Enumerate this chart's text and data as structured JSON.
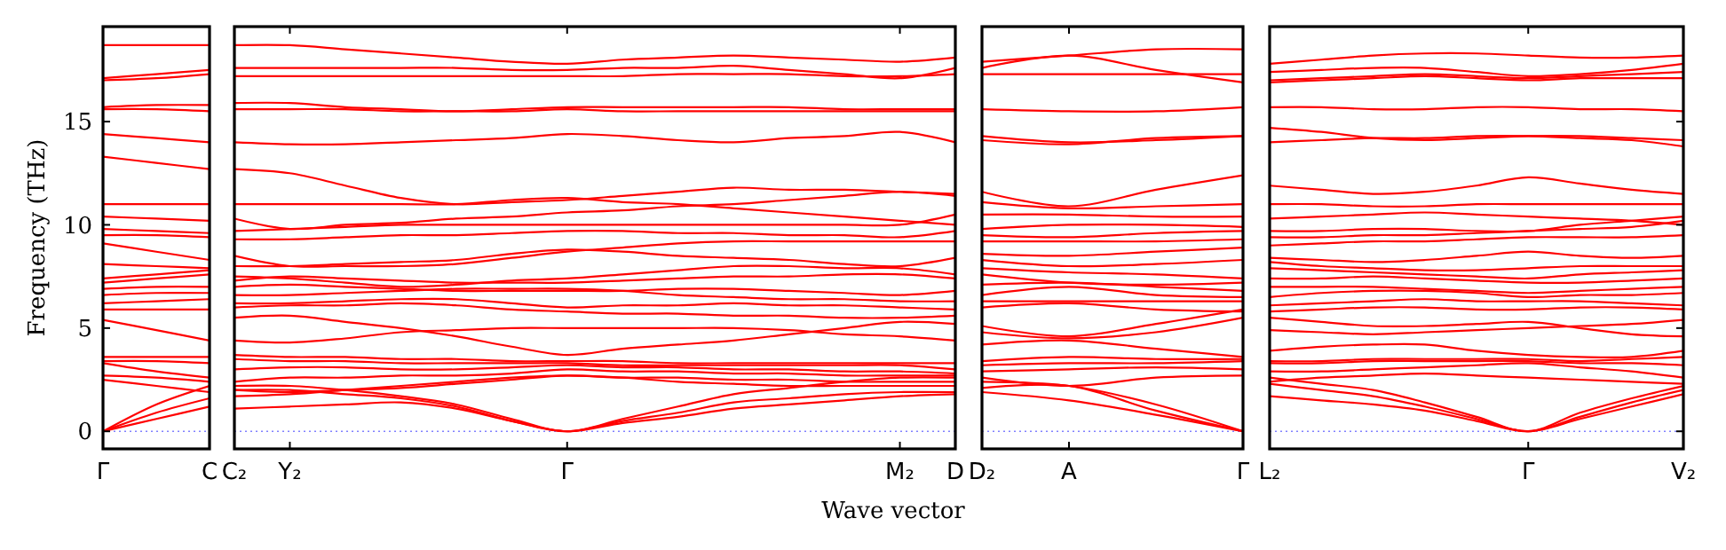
{
  "chart_data": [
    {
      "type": "line",
      "ylabel": "Frequency (THz)",
      "categories": [
        "Γ",
        null,
        "C"
      ],
      "ylim": [
        -0.85,
        19.6
      ],
      "yticks": [
        0,
        5,
        10,
        15
      ],
      "grid": false,
      "ref_lines": [
        {
          "axis": "y",
          "value": 0,
          "color": "#8080ff",
          "line_style": "dotted"
        }
      ],
      "series": [
        {
          "color": "#ff0000",
          "values": [
            18.7,
            18.7,
            18.7
          ]
        },
        {
          "color": "#ff0000",
          "values": [
            17.1,
            17.3,
            17.5
          ]
        },
        {
          "color": "#ff0000",
          "values": [
            17.0,
            17.1,
            17.3
          ]
        },
        {
          "color": "#ff0000",
          "values": [
            15.7,
            15.8,
            15.8
          ]
        },
        {
          "color": "#ff0000",
          "values": [
            15.6,
            15.6,
            15.5
          ]
        },
        {
          "color": "#ff0000",
          "values": [
            14.4,
            14.2,
            14.0
          ]
        },
        {
          "color": "#ff0000",
          "values": [
            13.3,
            13.0,
            12.7
          ]
        },
        {
          "color": "#ff0000",
          "values": [
            11.0,
            11.0,
            11.0
          ]
        },
        {
          "color": "#ff0000",
          "values": [
            10.4,
            10.3,
            10.2
          ]
        },
        {
          "color": "#ff0000",
          "values": [
            9.8,
            9.7,
            9.6
          ]
        },
        {
          "color": "#ff0000",
          "values": [
            9.5,
            9.5,
            9.4
          ]
        },
        {
          "color": "#ff0000",
          "values": [
            9.1,
            8.7,
            8.3
          ]
        },
        {
          "color": "#ff0000",
          "values": [
            8.1,
            8.0,
            7.9
          ]
        },
        {
          "color": "#ff0000",
          "values": [
            7.4,
            7.6,
            7.8
          ]
        },
        {
          "color": "#ff0000",
          "values": [
            7.2,
            7.4,
            7.6
          ]
        },
        {
          "color": "#ff0000",
          "values": [
            6.9,
            7.0,
            7.0
          ]
        },
        {
          "color": "#ff0000",
          "values": [
            6.6,
            6.7,
            6.7
          ]
        },
        {
          "color": "#ff0000",
          "values": [
            6.2,
            6.3,
            6.4
          ]
        },
        {
          "color": "#ff0000",
          "values": [
            5.9,
            5.9,
            5.9
          ]
        },
        {
          "color": "#ff0000",
          "values": [
            5.4,
            4.9,
            4.4
          ]
        },
        {
          "color": "#ff0000",
          "values": [
            3.6,
            3.6,
            3.6
          ]
        },
        {
          "color": "#ff0000",
          "values": [
            3.4,
            3.4,
            3.3
          ]
        },
        {
          "color": "#ff0000",
          "values": [
            3.3,
            2.9,
            2.6
          ]
        },
        {
          "color": "#ff0000",
          "values": [
            2.7,
            2.6,
            2.4
          ]
        },
        {
          "color": "#ff0000",
          "values": [
            2.5,
            2.2,
            1.9
          ]
        },
        {
          "color": "#ff0000",
          "values": [
            0,
            1.3,
            2.2
          ]
        },
        {
          "color": "#ff0000",
          "values": [
            0,
            0.9,
            1.6
          ]
        },
        {
          "color": "#ff0000",
          "values": [
            0,
            0.6,
            1.2
          ]
        }
      ]
    },
    {
      "type": "line",
      "xlabel": "Wave vector",
      "categories": [
        "C₂",
        "Y₂",
        null,
        null,
        null,
        null,
        "Γ",
        null,
        null,
        null,
        null,
        null,
        "M₂",
        "D"
      ],
      "ylim": [
        -0.85,
        19.6
      ],
      "yticks": [
        0,
        5,
        10,
        15
      ],
      "tick_labels": "x",
      "grid": false,
      "ref_lines": [
        {
          "axis": "y",
          "value": 0,
          "color": "#8080ff",
          "line_style": "dotted"
        }
      ],
      "series": [
        {
          "color": "#ff0000",
          "values": [
            18.7,
            18.7,
            18.5,
            18.3,
            18.1,
            17.9,
            17.8,
            18.0,
            18.1,
            18.2,
            18.1,
            18.0,
            17.9,
            18.1
          ]
        },
        {
          "color": "#ff0000",
          "values": [
            17.6,
            17.6,
            17.6,
            17.6,
            17.6,
            17.5,
            17.5,
            17.6,
            17.6,
            17.7,
            17.5,
            17.3,
            17.1,
            17.6
          ]
        },
        {
          "color": "#ff0000",
          "values": [
            17.2,
            17.2,
            17.2,
            17.2,
            17.2,
            17.2,
            17.2,
            17.2,
            17.3,
            17.3,
            17.3,
            17.2,
            17.2,
            17.3
          ]
        },
        {
          "color": "#ff0000",
          "values": [
            15.9,
            15.9,
            15.7,
            15.6,
            15.5,
            15.6,
            15.7,
            15.7,
            15.7,
            15.7,
            15.7,
            15.6,
            15.6,
            15.6
          ]
        },
        {
          "color": "#ff0000",
          "values": [
            15.6,
            15.6,
            15.6,
            15.5,
            15.5,
            15.5,
            15.6,
            15.5,
            15.5,
            15.5,
            15.5,
            15.5,
            15.5,
            15.5
          ]
        },
        {
          "color": "#ff0000",
          "values": [
            14.0,
            13.9,
            13.9,
            14.0,
            14.1,
            14.2,
            14.4,
            14.3,
            14.1,
            14.0,
            14.2,
            14.3,
            14.5,
            14.0
          ]
        },
        {
          "color": "#ff0000",
          "values": [
            12.7,
            12.5,
            11.9,
            11.3,
            11.0,
            11.1,
            11.2,
            11.4,
            11.6,
            11.8,
            11.7,
            11.7,
            11.6,
            11.5
          ]
        },
        {
          "color": "#ff0000",
          "values": [
            11.0,
            11.0,
            11.0,
            11.0,
            11.0,
            11.2,
            11.3,
            11.1,
            11.0,
            10.8,
            10.6,
            10.4,
            10.2,
            10.0
          ]
        },
        {
          "color": "#ff0000",
          "values": [
            10.3,
            9.8,
            10.0,
            10.1,
            10.3,
            10.4,
            10.6,
            10.7,
            10.9,
            11.0,
            11.2,
            11.4,
            11.6,
            11.4
          ]
        },
        {
          "color": "#ff0000",
          "values": [
            9.7,
            9.8,
            9.9,
            10.0,
            10.0,
            10.0,
            10.0,
            10.0,
            10.0,
            10.0,
            10.0,
            10.0,
            10.0,
            10.5
          ]
        },
        {
          "color": "#ff0000",
          "values": [
            9.3,
            9.3,
            9.4,
            9.5,
            9.5,
            9.6,
            9.7,
            9.7,
            9.6,
            9.6,
            9.5,
            9.5,
            9.4,
            9.7
          ]
        },
        {
          "color": "#ff0000",
          "values": [
            8.5,
            8.0,
            8.0,
            8.0,
            8.1,
            8.4,
            8.7,
            8.9,
            9.1,
            9.2,
            9.2,
            9.2,
            9.2,
            9.2
          ]
        },
        {
          "color": "#ff0000",
          "values": [
            8.0,
            8.0,
            8.1,
            8.2,
            8.3,
            8.6,
            8.8,
            8.7,
            8.5,
            8.4,
            8.3,
            8.1,
            8.0,
            8.4
          ]
        },
        {
          "color": "#ff0000",
          "values": [
            7.5,
            7.4,
            7.2,
            7.0,
            7.1,
            7.3,
            7.4,
            7.6,
            7.8,
            8.0,
            8.0,
            7.9,
            7.9,
            7.6
          ]
        },
        {
          "color": "#ff0000",
          "values": [
            7.3,
            7.5,
            7.4,
            7.3,
            7.2,
            7.2,
            7.2,
            7.3,
            7.4,
            7.5,
            7.5,
            7.6,
            7.6,
            7.4
          ]
        },
        {
          "color": "#ff0000",
          "values": [
            7.0,
            7.1,
            7.0,
            6.9,
            6.8,
            6.8,
            6.8,
            6.8,
            6.9,
            6.9,
            6.8,
            6.7,
            6.6,
            6.8
          ]
        },
        {
          "color": "#ff0000",
          "values": [
            6.6,
            6.6,
            6.7,
            6.8,
            6.9,
            6.9,
            6.9,
            6.8,
            6.6,
            6.5,
            6.4,
            6.4,
            6.3,
            6.3
          ]
        },
        {
          "color": "#ff0000",
          "values": [
            6.2,
            6.2,
            6.3,
            6.4,
            6.4,
            6.2,
            6.0,
            6.1,
            6.1,
            6.2,
            6.1,
            6.1,
            6.0,
            5.9
          ]
        },
        {
          "color": "#ff0000",
          "values": [
            6.0,
            6.1,
            6.1,
            6.2,
            6.1,
            5.9,
            5.8,
            5.7,
            5.7,
            5.6,
            5.6,
            5.5,
            5.5,
            5.6
          ]
        },
        {
          "color": "#ff0000",
          "values": [
            5.5,
            5.6,
            5.3,
            5.0,
            4.6,
            4.1,
            3.7,
            4.0,
            4.2,
            4.4,
            4.7,
            5.0,
            5.3,
            5.2
          ]
        },
        {
          "color": "#ff0000",
          "values": [
            4.4,
            4.3,
            4.5,
            4.8,
            4.9,
            5.0,
            5.0,
            5.0,
            5.0,
            5.0,
            4.9,
            4.7,
            4.6,
            4.4
          ]
        },
        {
          "color": "#ff0000",
          "values": [
            3.7,
            3.6,
            3.6,
            3.5,
            3.5,
            3.4,
            3.4,
            3.4,
            3.3,
            3.3,
            3.3,
            3.3,
            3.3,
            3.3
          ]
        },
        {
          "color": "#ff0000",
          "values": [
            3.5,
            3.4,
            3.4,
            3.3,
            3.3,
            3.3,
            3.3,
            3.2,
            3.2,
            3.2,
            3.2,
            3.2,
            3.2,
            3.0
          ]
        },
        {
          "color": "#ff0000",
          "values": [
            3.0,
            3.1,
            3.1,
            3.0,
            3.0,
            3.1,
            3.2,
            3.1,
            3.1,
            3.0,
            3.0,
            2.9,
            2.9,
            2.8
          ]
        },
        {
          "color": "#ff0000",
          "values": [
            2.4,
            2.6,
            2.6,
            2.7,
            2.7,
            2.8,
            3.0,
            2.9,
            2.9,
            2.8,
            2.8,
            2.7,
            2.7,
            2.7
          ]
        },
        {
          "color": "#ff0000",
          "values": [
            2.0,
            1.9,
            2.0,
            2.1,
            2.3,
            2.5,
            2.7,
            2.6,
            2.6,
            2.5,
            2.5,
            2.4,
            2.4,
            2.4
          ]
        },
        {
          "color": "#ff0000",
          "values": [
            1.7,
            1.8,
            2.0,
            2.2,
            2.4,
            2.6,
            2.7,
            2.6,
            2.4,
            2.3,
            2.2,
            2.2,
            2.2,
            2.2
          ]
        },
        {
          "color": "#ff0000",
          "values": [
            2.2,
            2.2,
            2.0,
            1.7,
            1.3,
            0.6,
            0,
            0.6,
            1.2,
            1.8,
            2.1,
            2.4,
            2.6,
            2.6
          ]
        },
        {
          "color": "#ff0000",
          "values": [
            2.0,
            2.0,
            1.8,
            1.6,
            1.2,
            0.5,
            0,
            0.5,
            0.9,
            1.4,
            1.6,
            1.8,
            1.9,
            1.9
          ]
        },
        {
          "color": "#ff0000",
          "values": [
            1.1,
            1.2,
            1.3,
            1.4,
            1.1,
            0.5,
            0,
            0.4,
            0.7,
            1.1,
            1.3,
            1.5,
            1.7,
            1.8
          ]
        }
      ]
    },
    {
      "type": "line",
      "categories": [
        "D₂",
        "A",
        null,
        "Γ"
      ],
      "ylim": [
        -0.85,
        19.6
      ],
      "yticks": [
        0,
        5,
        10,
        15
      ],
      "tick_labels": "x",
      "grid": false,
      "ref_lines": [
        {
          "axis": "y",
          "value": 0,
          "color": "#8080ff",
          "line_style": "dotted"
        }
      ],
      "series": [
        {
          "color": "#ff0000",
          "values": [
            17.9,
            18.2,
            18.5,
            18.5
          ]
        },
        {
          "color": "#ff0000",
          "values": [
            17.6,
            18.2,
            17.5,
            16.9
          ]
        },
        {
          "color": "#ff0000",
          "values": [
            17.3,
            17.3,
            17.3,
            17.3
          ]
        },
        {
          "color": "#ff0000",
          "values": [
            15.6,
            15.5,
            15.5,
            15.7
          ]
        },
        {
          "color": "#ff0000",
          "values": [
            14.3,
            14.0,
            14.1,
            14.3
          ]
        },
        {
          "color": "#ff0000",
          "values": [
            14.1,
            13.9,
            14.2,
            14.3
          ]
        },
        {
          "color": "#ff0000",
          "values": [
            11.6,
            10.9,
            11.7,
            12.4
          ]
        },
        {
          "color": "#ff0000",
          "values": [
            11.1,
            10.8,
            10.9,
            11.0
          ]
        },
        {
          "color": "#ff0000",
          "values": [
            10.5,
            10.5,
            10.4,
            10.4
          ]
        },
        {
          "color": "#ff0000",
          "values": [
            9.8,
            10.0,
            10.0,
            9.9
          ]
        },
        {
          "color": "#ff0000",
          "values": [
            9.5,
            9.4,
            9.6,
            9.7
          ]
        },
        {
          "color": "#ff0000",
          "values": [
            9.2,
            9.2,
            9.2,
            9.3
          ]
        },
        {
          "color": "#ff0000",
          "values": [
            8.6,
            8.5,
            8.7,
            8.9
          ]
        },
        {
          "color": "#ff0000",
          "values": [
            8.3,
            8.0,
            8.1,
            8.3
          ]
        },
        {
          "color": "#ff0000",
          "values": [
            7.9,
            7.7,
            7.6,
            7.4
          ]
        },
        {
          "color": "#ff0000",
          "values": [
            7.6,
            7.2,
            7.1,
            7.2
          ]
        },
        {
          "color": "#ff0000",
          "values": [
            7.1,
            7.2,
            7.0,
            6.8
          ]
        },
        {
          "color": "#ff0000",
          "values": [
            6.6,
            7.0,
            6.6,
            6.5
          ]
        },
        {
          "color": "#ff0000",
          "values": [
            6.3,
            6.3,
            6.3,
            6.3
          ]
        },
        {
          "color": "#ff0000",
          "values": [
            6.0,
            6.2,
            5.9,
            5.8
          ]
        },
        {
          "color": "#ff0000",
          "values": [
            5.1,
            4.6,
            5.2,
            5.9
          ]
        },
        {
          "color": "#ff0000",
          "values": [
            4.8,
            4.5,
            4.8,
            5.5
          ]
        },
        {
          "color": "#ff0000",
          "values": [
            4.2,
            4.4,
            4.0,
            3.6
          ]
        },
        {
          "color": "#ff0000",
          "values": [
            3.4,
            3.6,
            3.5,
            3.5
          ]
        },
        {
          "color": "#ff0000",
          "values": [
            3.2,
            3.3,
            3.3,
            3.4
          ]
        },
        {
          "color": "#ff0000",
          "values": [
            2.9,
            3.0,
            3.1,
            3.0
          ]
        },
        {
          "color": "#ff0000",
          "values": [
            2.6,
            2.2,
            2.6,
            2.7
          ]
        },
        {
          "color": "#ff0000",
          "values": [
            2.4,
            2.2,
            1.3,
            0
          ]
        },
        {
          "color": "#ff0000",
          "values": [
            2.1,
            2.2,
            1.0,
            0
          ]
        },
        {
          "color": "#ff0000",
          "values": [
            1.9,
            1.5,
            0.8,
            0
          ]
        }
      ]
    },
    {
      "type": "line",
      "categories": [
        "L₂",
        null,
        null,
        null,
        null,
        "Γ",
        null,
        null,
        "V₂"
      ],
      "ylim": [
        -0.85,
        19.6
      ],
      "yticks": [
        0,
        5,
        10,
        15
      ],
      "tick_labels": "x",
      "grid": false,
      "ref_lines": [
        {
          "axis": "y",
          "value": 0,
          "color": "#8080ff",
          "line_style": "dotted"
        }
      ],
      "series": [
        {
          "color": "#ff0000",
          "values": [
            17.8,
            18.0,
            18.2,
            18.3,
            18.3,
            18.2,
            18.1,
            18.1,
            18.2
          ]
        },
        {
          "color": "#ff0000",
          "values": [
            17.4,
            17.5,
            17.6,
            17.6,
            17.4,
            17.2,
            17.3,
            17.5,
            17.8
          ]
        },
        {
          "color": "#ff0000",
          "values": [
            17.0,
            17.1,
            17.2,
            17.3,
            17.2,
            17.1,
            17.2,
            17.3,
            17.4
          ]
        },
        {
          "color": "#ff0000",
          "values": [
            16.9,
            17.0,
            17.1,
            17.2,
            17.1,
            17.0,
            17.1,
            17.1,
            17.1
          ]
        },
        {
          "color": "#ff0000",
          "values": [
            15.7,
            15.7,
            15.6,
            15.6,
            15.7,
            15.7,
            15.6,
            15.6,
            15.5
          ]
        },
        {
          "color": "#ff0000",
          "values": [
            14.7,
            14.5,
            14.2,
            14.1,
            14.2,
            14.3,
            14.3,
            14.2,
            14.1
          ]
        },
        {
          "color": "#ff0000",
          "values": [
            14.0,
            14.1,
            14.2,
            14.2,
            14.3,
            14.3,
            14.2,
            14.1,
            13.8
          ]
        },
        {
          "color": "#ff0000",
          "values": [
            11.9,
            11.7,
            11.5,
            11.6,
            11.9,
            12.3,
            12.0,
            11.7,
            11.5
          ]
        },
        {
          "color": "#ff0000",
          "values": [
            11.0,
            11.0,
            10.9,
            10.9,
            11.0,
            11.0,
            11.0,
            11.0,
            11.0
          ]
        },
        {
          "color": "#ff0000",
          "values": [
            10.3,
            10.4,
            10.5,
            10.6,
            10.5,
            10.4,
            10.3,
            10.2,
            10.0
          ]
        },
        {
          "color": "#ff0000",
          "values": [
            9.7,
            9.7,
            9.8,
            9.8,
            9.7,
            9.7,
            10.0,
            10.2,
            10.4
          ]
        },
        {
          "color": "#ff0000",
          "values": [
            9.4,
            9.4,
            9.5,
            9.5,
            9.6,
            9.7,
            9.8,
            9.9,
            10.2
          ]
        },
        {
          "color": "#ff0000",
          "values": [
            9.0,
            9.1,
            9.2,
            9.2,
            9.3,
            9.4,
            9.4,
            9.4,
            9.5
          ]
        },
        {
          "color": "#ff0000",
          "values": [
            8.4,
            8.3,
            8.2,
            8.3,
            8.5,
            8.7,
            8.5,
            8.4,
            8.5
          ]
        },
        {
          "color": "#ff0000",
          "values": [
            8.2,
            8.0,
            7.9,
            7.8,
            7.8,
            7.9,
            8.0,
            8.0,
            8.0
          ]
        },
        {
          "color": "#ff0000",
          "values": [
            7.9,
            7.8,
            7.7,
            7.6,
            7.5,
            7.4,
            7.6,
            7.7,
            7.8
          ]
        },
        {
          "color": "#ff0000",
          "values": [
            7.4,
            7.4,
            7.5,
            7.4,
            7.3,
            7.2,
            7.2,
            7.3,
            7.4
          ]
        },
        {
          "color": "#ff0000",
          "values": [
            7.0,
            7.0,
            7.0,
            6.9,
            6.8,
            6.7,
            6.8,
            6.9,
            7.0
          ]
        },
        {
          "color": "#ff0000",
          "values": [
            6.5,
            6.7,
            6.8,
            6.8,
            6.7,
            6.5,
            6.6,
            6.6,
            6.7
          ]
        },
        {
          "color": "#ff0000",
          "values": [
            6.1,
            6.2,
            6.3,
            6.4,
            6.3,
            6.3,
            6.3,
            6.2,
            6.1
          ]
        },
        {
          "color": "#ff0000",
          "values": [
            5.8,
            5.9,
            6.0,
            6.0,
            5.9,
            5.9,
            6.0,
            6.0,
            5.9
          ]
        },
        {
          "color": "#ff0000",
          "values": [
            5.5,
            5.3,
            5.1,
            5.1,
            5.2,
            5.3,
            5.0,
            4.7,
            4.6
          ]
        },
        {
          "color": "#ff0000",
          "values": [
            4.9,
            4.8,
            4.7,
            4.8,
            4.9,
            5.0,
            5.1,
            5.2,
            5.4
          ]
        },
        {
          "color": "#ff0000",
          "values": [
            3.9,
            4.1,
            4.2,
            4.2,
            3.9,
            3.7,
            3.6,
            3.6,
            3.9
          ]
        },
        {
          "color": "#ff0000",
          "values": [
            3.4,
            3.4,
            3.5,
            3.5,
            3.5,
            3.5,
            3.4,
            3.5,
            3.6
          ]
        },
        {
          "color": "#ff0000",
          "values": [
            3.3,
            3.3,
            3.4,
            3.4,
            3.4,
            3.4,
            3.3,
            3.3,
            3.2
          ]
        },
        {
          "color": "#ff0000",
          "values": [
            2.9,
            2.9,
            3.0,
            3.1,
            3.2,
            3.3,
            3.1,
            2.9,
            2.6
          ]
        },
        {
          "color": "#ff0000",
          "values": [
            2.4,
            2.6,
            2.7,
            2.8,
            2.7,
            2.6,
            2.5,
            2.4,
            2.3
          ]
        },
        {
          "color": "#ff0000",
          "values": [
            2.6,
            2.3,
            2.0,
            1.4,
            0.7,
            0,
            0.9,
            1.6,
            2.2
          ]
        },
        {
          "color": "#ff0000",
          "values": [
            2.3,
            2.0,
            1.7,
            1.2,
            0.6,
            0,
            0.7,
            1.4,
            2.0
          ]
        },
        {
          "color": "#ff0000",
          "values": [
            1.7,
            1.5,
            1.3,
            1.0,
            0.5,
            0,
            0.6,
            1.2,
            1.8
          ]
        }
      ]
    }
  ]
}
